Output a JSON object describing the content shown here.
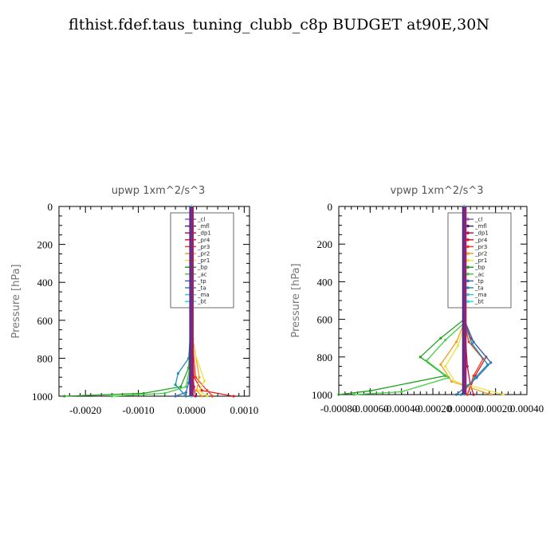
{
  "title": "flthist.fdef.taus_tuning_clubb_c8p  BUDGET at90E,30N",
  "legend_colors": {
    "_cl": "#8c5ac8",
    "_mfl": "#3c2c6e",
    "_dp1": "#c01050",
    "_pr4": "#e01c1c",
    "_pr3": "#ee4020",
    "_pr2": "#f0a020",
    "_pr1": "#f0e040",
    "_bp": "#20a020",
    "_ac": "#40d040",
    "_tp": "#3070c0",
    "_ta": "#2090b0",
    "_ma": "#40c0d0",
    "_bt": "#20e0f0"
  },
  "chart_data": [
    {
      "type": "line",
      "title": "upwp   1xm^2/s^3",
      "ylabel": "Pressure  [hPa]",
      "xlim": [
        -0.0025,
        0.0011
      ],
      "ylim": [
        1000,
        0
      ],
      "xticks": [
        -0.002,
        -0.001,
        0.0,
        0.001
      ],
      "xtick_labels": [
        "-0.0020",
        "-0.0010",
        "0.0000",
        "0.0010"
      ],
      "yticks": [
        0,
        200,
        400,
        600,
        800,
        1000
      ],
      "ytick_labels": [
        "0",
        "200",
        "400",
        "600",
        "800",
        "1000"
      ],
      "legend": [
        "_cl",
        "_mfl",
        "_dp1",
        "_pr4",
        "_pr3",
        "_pr2",
        "_pr1",
        "_bp",
        "_ac",
        "_tp",
        "_ta",
        "_ma",
        "_bt"
      ],
      "legend_position": "top-right",
      "series": [
        {
          "name": "_cl",
          "x": [
            0,
            0,
            0,
            0,
            0,
            0
          ],
          "y": [
            0,
            200,
            400,
            600,
            800,
            1000
          ]
        },
        {
          "name": "_mfl",
          "x": [
            0,
            0,
            0,
            0,
            0,
            0
          ],
          "y": [
            0,
            200,
            400,
            600,
            800,
            1000
          ]
        },
        {
          "name": "_dp1",
          "x": [
            0,
            0,
            0,
            2e-05,
            5e-05,
            8e-05
          ],
          "y": [
            0,
            300,
            600,
            850,
            950,
            1000
          ]
        },
        {
          "name": "_pr4",
          "x": [
            0,
            0,
            1e-05,
            5e-05,
            0.0002,
            0.0008
          ],
          "y": [
            0,
            300,
            700,
            900,
            970,
            1000
          ]
        },
        {
          "name": "_pr3",
          "x": [
            0,
            0,
            2e-05,
            8e-05,
            0.0003,
            0.0004
          ],
          "y": [
            0,
            300,
            700,
            900,
            970,
            1000
          ]
        },
        {
          "name": "_pr2",
          "x": [
            0,
            0,
            3e-05,
            0.00015,
            0.0001,
            0.0002
          ],
          "y": [
            0,
            500,
            700,
            900,
            970,
            1000
          ]
        },
        {
          "name": "_pr1",
          "x": [
            0,
            0,
            4e-05,
            0.00025,
            0.00015,
            0.0003
          ],
          "y": [
            0,
            500,
            750,
            920,
            970,
            1000
          ]
        },
        {
          "name": "_bp",
          "x": [
            0,
            0,
            -5e-05,
            -0.0002,
            -0.0009,
            -0.0024
          ],
          "y": [
            0,
            600,
            850,
            950,
            985,
            1000
          ]
        },
        {
          "name": "_ac",
          "x": [
            0,
            0,
            -3e-05,
            -0.0001,
            -0.0005,
            -0.0015
          ],
          "y": [
            0,
            600,
            850,
            950,
            985,
            1000
          ]
        },
        {
          "name": "_tp",
          "x": [
            0,
            0,
            -2e-05,
            -5e-05,
            -0.0001,
            -0.0003
          ],
          "y": [
            0,
            600,
            850,
            930,
            980,
            1000
          ]
        },
        {
          "name": "_ta",
          "x": [
            0,
            0,
            -5e-05,
            -0.00025,
            -0.0003,
            -0.0001
          ],
          "y": [
            0,
            600,
            800,
            880,
            940,
            1000
          ]
        },
        {
          "name": "_ma",
          "x": [
            0,
            0,
            0,
            0,
            0,
            0
          ],
          "y": [
            0,
            200,
            400,
            600,
            800,
            1000
          ]
        },
        {
          "name": "_bt",
          "x": [
            0,
            0,
            0,
            0,
            0,
            0
          ],
          "y": [
            0,
            200,
            400,
            600,
            800,
            1000
          ]
        }
      ]
    },
    {
      "type": "line",
      "title": "vpwp   1xm^2/s^3",
      "ylabel": "Pressure  [hPa]",
      "xlim": [
        -0.0008,
        0.0004
      ],
      "ylim": [
        1000,
        0
      ],
      "xticks": [
        -0.0008,
        -0.0006,
        -0.0004,
        -0.0002,
        0.0,
        0.0002,
        0.0004
      ],
      "xtick_labels": [
        "-0.00080",
        "-0.00060",
        "-0.00040",
        "-0.00020",
        "0.00000",
        "0.00020",
        "0.00040"
      ],
      "yticks": [
        0,
        200,
        400,
        600,
        800,
        1000
      ],
      "ytick_labels": [
        "0",
        "200",
        "400",
        "600",
        "800",
        "1000"
      ],
      "legend": [
        "_cl",
        "_mfl",
        "_dp1",
        "_pr4",
        "_pr3",
        "_pr2",
        "_pr1",
        "_bp",
        "_ac",
        "_tp",
        "_ta",
        "_ma",
        "_bt"
      ],
      "legend_position": "top-right",
      "series": [
        {
          "name": "_cl",
          "x": [
            0,
            0,
            0,
            0,
            0,
            0
          ],
          "y": [
            0,
            200,
            400,
            600,
            800,
            1000
          ]
        },
        {
          "name": "_mfl",
          "x": [
            0,
            0,
            0,
            0,
            0,
            0
          ],
          "y": [
            0,
            200,
            400,
            600,
            800,
            1000
          ]
        },
        {
          "name": "_dp1",
          "x": [
            0,
            0,
            0,
            2e-05,
            4e-05,
            6e-05
          ],
          "y": [
            0,
            300,
            600,
            850,
            950,
            1000
          ]
        },
        {
          "name": "_pr4",
          "x": [
            0,
            0,
            4e-05,
            0.00014,
            7e-05,
            2e-05
          ],
          "y": [
            0,
            600,
            700,
            800,
            900,
            1000
          ]
        },
        {
          "name": "_pr3",
          "x": [
            0,
            0,
            3e-05,
            0.00012,
            6e-05,
            2e-05
          ],
          "y": [
            0,
            620,
            720,
            810,
            900,
            1000
          ]
        },
        {
          "name": "_pr2",
          "x": [
            0,
            0,
            -5e-05,
            -0.00015,
            -8e-05,
            0.00017
          ],
          "y": [
            0,
            620,
            720,
            840,
            930,
            1000
          ]
        },
        {
          "name": "_pr1",
          "x": [
            0,
            0,
            -4e-05,
            -0.00012,
            -6e-05,
            0.00025
          ],
          "y": [
            0,
            640,
            740,
            850,
            930,
            1000
          ]
        },
        {
          "name": "_bp",
          "x": [
            0,
            0,
            -0.00015,
            -0.00028,
            -0.00012,
            -0.0006,
            -0.0008
          ],
          "y": [
            0,
            600,
            700,
            800,
            900,
            980,
            1000
          ]
        },
        {
          "name": "_ac",
          "x": [
            0,
            0,
            -0.00012,
            -0.00024,
            -0.0001,
            -0.0004,
            -0.0007
          ],
          "y": [
            0,
            620,
            710,
            820,
            910,
            985,
            1000
          ]
        },
        {
          "name": "_tp",
          "x": [
            0,
            0,
            6e-05,
            0.00017,
            8e-05,
            -5e-05
          ],
          "y": [
            0,
            600,
            720,
            830,
            910,
            1000
          ]
        },
        {
          "name": "_ta",
          "x": [
            0,
            0,
            5e-05,
            0.00015,
            7e-05,
            -2e-05
          ],
          "y": [
            0,
            620,
            730,
            840,
            910,
            1000
          ]
        },
        {
          "name": "_ma",
          "x": [
            0,
            0,
            0,
            0,
            0,
            0
          ],
          "y": [
            0,
            200,
            400,
            600,
            800,
            1000
          ]
        },
        {
          "name": "_bt",
          "x": [
            0,
            0,
            0,
            0,
            0,
            0
          ],
          "y": [
            0,
            200,
            400,
            600,
            800,
            1000
          ]
        }
      ]
    }
  ]
}
